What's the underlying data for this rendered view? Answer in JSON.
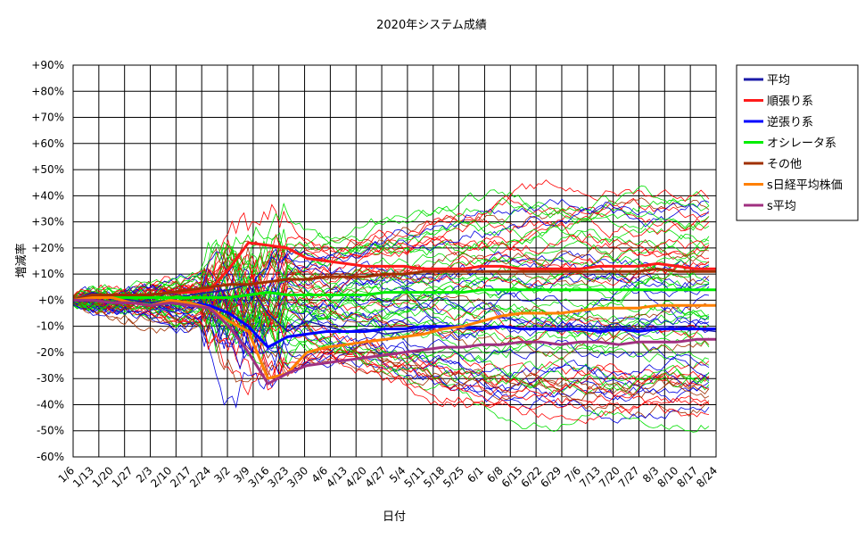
{
  "chart_data": {
    "type": "line",
    "title": "2020年システム成績",
    "xlabel": "日付",
    "ylabel": "増減率",
    "ylim": [
      -60,
      90
    ],
    "y_ticks": [
      "+90%",
      "+80%",
      "+70%",
      "+60%",
      "+50%",
      "+40%",
      "+30%",
      "+20%",
      "+10%",
      "+0%",
      "-10%",
      "-20%",
      "-30%",
      "-40%",
      "-50%",
      "-60%"
    ],
    "x_ticks": [
      "1/6",
      "1/13",
      "1/20",
      "1/27",
      "2/3",
      "2/10",
      "2/17",
      "2/24",
      "3/2",
      "3/9",
      "3/16",
      "3/23",
      "3/30",
      "4/6",
      "4/13",
      "4/20",
      "4/27",
      "5/4",
      "5/11",
      "5/18",
      "5/25",
      "6/1",
      "6/8",
      "6/15",
      "6/22",
      "6/29",
      "7/6",
      "7/13",
      "7/20",
      "7/27",
      "8/3",
      "8/10",
      "8/17",
      "8/24"
    ],
    "grid": true,
    "legend_position": "right",
    "series": [
      {
        "name": "平均",
        "color": "#1a1aa8",
        "bold": false,
        "values": [
          0,
          3,
          1,
          0,
          -1,
          0,
          2,
          3,
          4,
          6,
          -5,
          -12,
          -8,
          -10,
          -12,
          -11,
          -13,
          -12,
          -11,
          -10,
          -11,
          -11,
          -10,
          -11,
          -11,
          -12,
          -11,
          -11,
          -10,
          -11,
          -10,
          -10,
          -11,
          -12
        ]
      },
      {
        "name": "順張り系",
        "color": "#ff1a1a",
        "bold": true,
        "values": [
          0,
          1,
          1,
          1,
          2,
          3,
          3,
          4,
          12,
          22,
          21,
          20,
          16,
          15,
          14,
          13,
          13,
          13,
          12,
          12,
          12,
          13,
          13,
          12,
          12,
          12,
          12,
          13,
          13,
          13,
          14,
          13,
          12,
          12
        ]
      },
      {
        "name": "逆張り系",
        "color": "#0000ff",
        "bold": true,
        "values": [
          0,
          0,
          -1,
          -1,
          -2,
          -1,
          -1,
          -2,
          -5,
          -10,
          -18,
          -14,
          -13,
          -12,
          -12,
          -12,
          -11,
          -11,
          -10,
          -10,
          -10,
          -11,
          -10,
          -11,
          -11,
          -11,
          -11,
          -12,
          -11,
          -12,
          -11,
          -11,
          -11,
          -11
        ]
      },
      {
        "name": "オシレータ系",
        "color": "#00ee00",
        "bold": true,
        "values": [
          0,
          1,
          1,
          1,
          1,
          1,
          1,
          1,
          1,
          2,
          3,
          2,
          2,
          2,
          2,
          2,
          3,
          3,
          3,
          3,
          3,
          4,
          4,
          4,
          4,
          4,
          4,
          4,
          4,
          4,
          4,
          4,
          4,
          4
        ]
      },
      {
        "name": "その他",
        "color": "#a03000",
        "bold": true,
        "values": [
          0,
          2,
          2,
          2,
          2,
          3,
          4,
          5,
          6,
          6,
          7,
          8,
          8,
          9,
          9,
          9,
          10,
          10,
          11,
          11,
          11,
          11,
          11,
          11,
          11,
          11,
          11,
          11,
          11,
          11,
          12,
          11,
          11,
          11
        ]
      },
      {
        "name": "s日経平均株価",
        "color": "#ff8000",
        "bold": true,
        "values": [
          0,
          1,
          1,
          -1,
          -2,
          0,
          -1,
          -3,
          -8,
          -12,
          -30,
          -28,
          -20,
          -18,
          -17,
          -16,
          -15,
          -14,
          -13,
          -11,
          -10,
          -8,
          -6,
          -5,
          -5,
          -5,
          -4,
          -3,
          -3,
          -3,
          -2,
          -2,
          -2,
          -2
        ]
      },
      {
        "name": "s平均",
        "color": "#a03080",
        "bold": true,
        "values": [
          0,
          0,
          -1,
          -1,
          -2,
          -1,
          -2,
          -3,
          -10,
          -20,
          -32,
          -28,
          -25,
          -24,
          -23,
          -22,
          -21,
          -20,
          -19,
          -18,
          -18,
          -17,
          -17,
          -16,
          -16,
          -17,
          -16,
          -16,
          -17,
          -16,
          -16,
          -16,
          -15,
          -15
        ]
      }
    ]
  }
}
